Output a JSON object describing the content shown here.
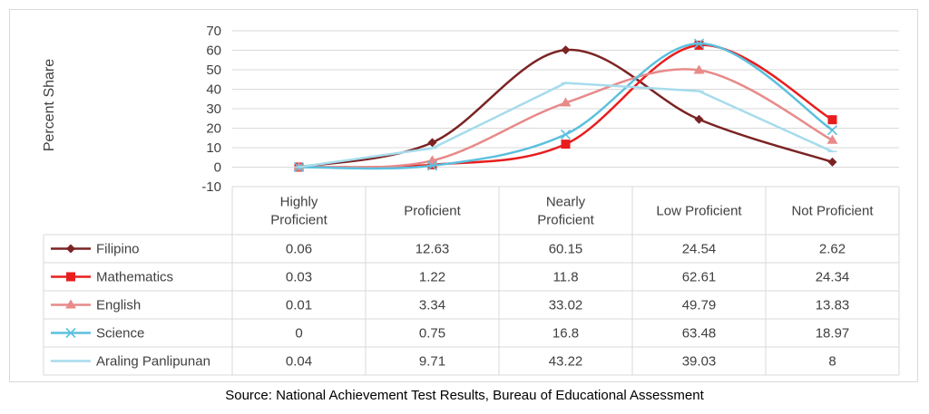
{
  "chart_data": {
    "type": "line",
    "ylabel": "Percent Share",
    "xlabel": "",
    "ylim": [
      -10,
      70
    ],
    "yticks": [
      -10,
      0,
      10,
      20,
      30,
      40,
      50,
      60,
      70
    ],
    "grid": true,
    "categories": [
      "Highly Proficient",
      "Proficient",
      "Nearly Proficient",
      "Low Proficient",
      "Not Proficient"
    ],
    "category_lines": [
      [
        "Highly",
        "Proficient"
      ],
      [
        "Proficient"
      ],
      [
        "Nearly",
        "Proficient"
      ],
      [
        "Low Proficient"
      ],
      [
        "Not Proficient"
      ]
    ],
    "series": [
      {
        "name": "Filipino",
        "values": [
          0.06,
          12.63,
          60.15,
          24.54,
          2.62
        ],
        "color": "#7b2323",
        "marker": "diamond",
        "smooth": true
      },
      {
        "name": "Mathematics",
        "values": [
          0.03,
          1.22,
          11.8,
          62.61,
          24.34
        ],
        "color": "#e81e1e",
        "marker": "square",
        "smooth": true
      },
      {
        "name": "English",
        "values": [
          0.01,
          3.34,
          33.02,
          49.79,
          13.83
        ],
        "color": "#e88a8a",
        "marker": "triangle",
        "smooth": true
      },
      {
        "name": "Science",
        "values": [
          0,
          0.75,
          16.8,
          63.48,
          18.97
        ],
        "color": "#5bc0de",
        "marker": "x",
        "smooth": true
      },
      {
        "name": "Araling Panlipunan",
        "values": [
          0.04,
          9.71,
          43.22,
          39.03,
          8
        ],
        "color": "#a6dcec",
        "marker": "dash",
        "smooth": false
      }
    ],
    "table_display": [
      [
        "0.06",
        "12.63",
        "60.15",
        "24.54",
        "2.62"
      ],
      [
        "0.03",
        "1.22",
        "11.8",
        "62.61",
        "24.34"
      ],
      [
        "0.01",
        "3.34",
        "33.02",
        "49.79",
        "13.83"
      ],
      [
        "0",
        "0.75",
        "16.8",
        "63.48",
        "18.97"
      ],
      [
        "0.04",
        "9.71",
        "43.22",
        "39.03",
        "8"
      ]
    ]
  },
  "source": "Source: National Achievement Test Results, Bureau of Educational Assessment"
}
